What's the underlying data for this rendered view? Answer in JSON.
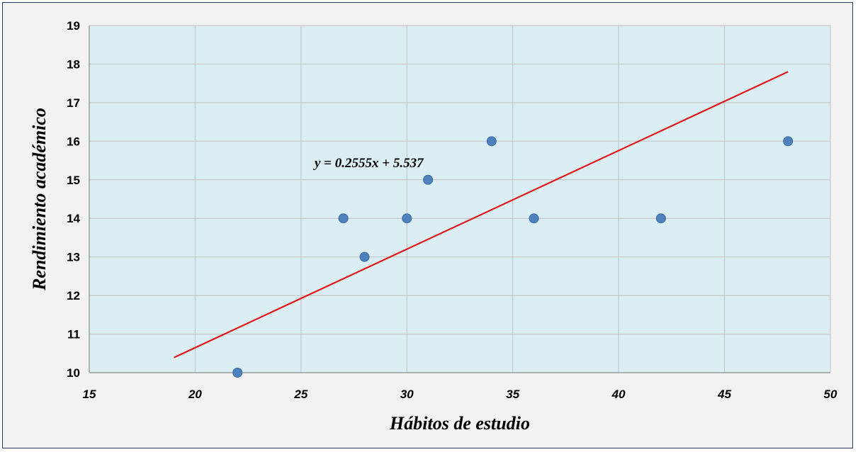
{
  "chart_data": {
    "type": "scatter",
    "title": "",
    "xlabel": "Hábitos de estudio",
    "ylabel": "Rendimiento académico",
    "xlim": [
      15,
      50
    ],
    "ylim": [
      10,
      19
    ],
    "xticks": [
      15,
      20,
      25,
      30,
      35,
      40,
      45,
      50
    ],
    "yticks": [
      10,
      11,
      12,
      13,
      14,
      15,
      16,
      17,
      18,
      19
    ],
    "grid": true,
    "legend": "none",
    "points": [
      {
        "x": 22,
        "y": 10
      },
      {
        "x": 27,
        "y": 14
      },
      {
        "x": 28,
        "y": 13
      },
      {
        "x": 30,
        "y": 14
      },
      {
        "x": 31,
        "y": 15
      },
      {
        "x": 34,
        "y": 16
      },
      {
        "x": 36,
        "y": 14
      },
      {
        "x": 42,
        "y": 14
      },
      {
        "x": 48,
        "y": 16
      }
    ],
    "trendline": {
      "type": "linear",
      "slope": 0.2555,
      "intercept": 5.537,
      "x_range": [
        19,
        48
      ],
      "equation_label": "y = 0.2555x + 5.537",
      "color": "#e31a1c"
    },
    "colors": {
      "plot_background": "#daeef3",
      "frame_background": "#f2f2f2",
      "frame_border": "#1f3864",
      "marker": "#4f81bd",
      "gridline": "#c8c8c8"
    }
  }
}
